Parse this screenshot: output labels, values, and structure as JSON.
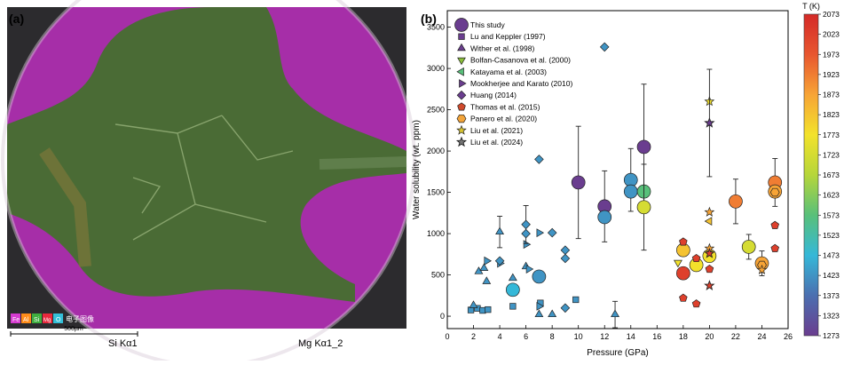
{
  "panel_a": {
    "label": "(a)",
    "legend_items": [
      "Fe",
      "Al",
      "Si",
      "Mg",
      "O"
    ],
    "legend_colors": [
      "#d63bd0",
      "#ff8c1a",
      "#3fae3f",
      "#e8283c",
      "#34c0d8"
    ],
    "legend_caption": "电子图像",
    "scale_bar_label": "500µm",
    "map_label_left": "Si Kα1",
    "map_label_right": "Mg Kα1_2"
  },
  "chart_data": {
    "type": "scatter",
    "panel_label": "(b)",
    "xlabel": "Pressure (GPa)",
    "ylabel": "Water solubility (wt. ppm)",
    "xlim": [
      0,
      26
    ],
    "ylim": [
      -150,
      3700
    ],
    "xticks": [
      0,
      2,
      4,
      6,
      8,
      10,
      12,
      14,
      16,
      18,
      20,
      22,
      24,
      26
    ],
    "yticks": [
      0,
      500,
      1000,
      1500,
      2000,
      2500,
      3000,
      3500
    ],
    "colorbar": {
      "title": "T (K)",
      "min": 1273,
      "max": 2073,
      "ticks": [
        1273,
        1323,
        1373,
        1423,
        1473,
        1523,
        1573,
        1623,
        1673,
        1723,
        1773,
        1823,
        1873,
        1923,
        1973,
        2023,
        2073
      ],
      "colors": [
        "#6a3d8f",
        "#4b6fb0",
        "#35b8d8",
        "#58c07a",
        "#b6d63a",
        "#f3e22b",
        "#f7a436",
        "#e8562f",
        "#d42a28"
      ]
    },
    "legend": [
      {
        "label": "This study",
        "marker": "circle"
      },
      {
        "label": "Lu and Keppler (1997)",
        "marker": "square"
      },
      {
        "label": "Wither et al. (1998)",
        "marker": "triangle-up"
      },
      {
        "label": "Bolfan-Casanova et al. (2000)",
        "marker": "triangle-down"
      },
      {
        "label": "Katayama et al. (2003)",
        "marker": "triangle-left"
      },
      {
        "label": "Mookherjee and Karato (2010)",
        "marker": "triangle-right"
      },
      {
        "label": "Huang (2014)",
        "marker": "diamond"
      },
      {
        "label": "Thomas et al. (2015)",
        "marker": "pentagon"
      },
      {
        "label": "Panero et al. (2020)",
        "marker": "hexagon"
      },
      {
        "label": "Liu et al. (2021)",
        "marker": "star"
      },
      {
        "label": "Liu et al. (2024)",
        "marker": "star-dark"
      }
    ],
    "series": [
      {
        "name": "This study",
        "marker": "circle",
        "points": [
          {
            "x": 5,
            "y": 320,
            "t": 1473,
            "err": 60
          },
          {
            "x": 7,
            "y": 480,
            "t": 1423
          },
          {
            "x": 10,
            "y": 1620,
            "t": 1273,
            "err": 680
          },
          {
            "x": 12,
            "y": 1330,
            "t": 1273,
            "err": 430
          },
          {
            "x": 12,
            "y": 1200,
            "t": 1423
          },
          {
            "x": 14,
            "y": 1650,
            "t": 1423,
            "err": 380
          },
          {
            "x": 14,
            "y": 1510,
            "t": 1423
          },
          {
            "x": 15,
            "y": 2050,
            "t": 1273,
            "err": 760
          },
          {
            "x": 15,
            "y": 1510,
            "t": 1573
          },
          {
            "x": 15,
            "y": 1320,
            "t": 1723,
            "err": 520
          },
          {
            "x": 18,
            "y": 800,
            "t": 1823
          },
          {
            "x": 18,
            "y": 520,
            "t": 2023
          },
          {
            "x": 19,
            "y": 620,
            "t": 1773
          },
          {
            "x": 20,
            "y": 730,
            "t": 1773
          },
          {
            "x": 22,
            "y": 1390,
            "t": 1923,
            "err": 270
          },
          {
            "x": 23,
            "y": 840,
            "t": 1723,
            "err": 150
          },
          {
            "x": 24,
            "y": 640,
            "t": 1873,
            "err": 150
          },
          {
            "x": 25,
            "y": 1620,
            "t": 1923,
            "err": 290
          },
          {
            "x": 25,
            "y": 1510,
            "t": 1873
          }
        ]
      },
      {
        "name": "Lu and Keppler (1997)",
        "marker": "square",
        "points": [
          {
            "x": 1.8,
            "y": 75,
            "t": 1423
          },
          {
            "x": 2.3,
            "y": 95,
            "t": 1423
          },
          {
            "x": 2.7,
            "y": 70,
            "t": 1423
          },
          {
            "x": 3.1,
            "y": 80,
            "t": 1423
          },
          {
            "x": 5,
            "y": 120,
            "t": 1423
          },
          {
            "x": 7.1,
            "y": 160,
            "t": 1423
          },
          {
            "x": 9.8,
            "y": 200,
            "t": 1423
          }
        ]
      },
      {
        "name": "Wither et al. (1998)",
        "marker": "triangle-up",
        "points": [
          {
            "x": 2,
            "y": 130,
            "t": 1423
          },
          {
            "x": 2.4,
            "y": 540,
            "t": 1423
          },
          {
            "x": 2.8,
            "y": 580,
            "t": 1423
          },
          {
            "x": 3,
            "y": 420,
            "t": 1423
          },
          {
            "x": 4,
            "y": 1020,
            "t": 1423,
            "err": 190
          },
          {
            "x": 5,
            "y": 460,
            "t": 1423
          },
          {
            "x": 6,
            "y": 600,
            "t": 1423
          },
          {
            "x": 7,
            "y": 20,
            "t": 1423
          },
          {
            "x": 8,
            "y": 20,
            "t": 1423
          },
          {
            "x": 12.8,
            "y": 20,
            "t": 1423,
            "err": 160
          }
        ]
      },
      {
        "name": "Bolfan-Casanova et al. (2000)",
        "marker": "triangle-down",
        "points": [
          {
            "x": 17.6,
            "y": 650,
            "t": 1773
          }
        ]
      },
      {
        "name": "Katayama et al. (2003)",
        "marker": "triangle-left",
        "points": [
          {
            "x": 20,
            "y": 1150,
            "t": 1823
          }
        ]
      },
      {
        "name": "Mookherjee and Karato (2010)",
        "marker": "triangle-right",
        "points": [
          {
            "x": 3,
            "y": 670,
            "t": 1423
          },
          {
            "x": 4,
            "y": 640,
            "t": 1423
          },
          {
            "x": 6,
            "y": 870,
            "t": 1423
          },
          {
            "x": 6.2,
            "y": 570,
            "t": 1423
          },
          {
            "x": 7,
            "y": 1010,
            "t": 1423
          },
          {
            "x": 7,
            "y": 120,
            "t": 1423
          }
        ]
      },
      {
        "name": "Huang (2014)",
        "marker": "diamond",
        "points": [
          {
            "x": 4,
            "y": 670,
            "t": 1423
          },
          {
            "x": 6,
            "y": 1110,
            "t": 1423,
            "err": 230
          },
          {
            "x": 6,
            "y": 1000,
            "t": 1423
          },
          {
            "x": 7,
            "y": 1900,
            "t": 1423
          },
          {
            "x": 8,
            "y": 1010,
            "t": 1423
          },
          {
            "x": 9,
            "y": 700,
            "t": 1423
          },
          {
            "x": 9,
            "y": 800,
            "t": 1423
          },
          {
            "x": 9,
            "y": 100,
            "t": 1423
          },
          {
            "x": 12,
            "y": 3260,
            "t": 1423
          }
        ]
      },
      {
        "name": "Thomas et al. (2015)",
        "marker": "pentagon",
        "points": [
          {
            "x": 18,
            "y": 900,
            "t": 2023
          },
          {
            "x": 18,
            "y": 220,
            "t": 2023
          },
          {
            "x": 19,
            "y": 150,
            "t": 2023
          },
          {
            "x": 19,
            "y": 700,
            "t": 2023
          },
          {
            "x": 20,
            "y": 570,
            "t": 2023
          },
          {
            "x": 25,
            "y": 1100,
            "t": 2023
          },
          {
            "x": 25,
            "y": 820,
            "t": 2023
          }
        ]
      },
      {
        "name": "Panero et al. (2020)",
        "marker": "hexagon",
        "points": [
          {
            "x": 24,
            "y": 620,
            "t": 1873
          },
          {
            "x": 25,
            "y": 1500,
            "t": 1873
          }
        ]
      },
      {
        "name": "Liu et al. (2021)",
        "marker": "star",
        "points": [
          {
            "x": 20,
            "y": 2600,
            "t": 1773
          },
          {
            "x": 20,
            "y": 1260,
            "t": 1873
          },
          {
            "x": 20,
            "y": 820,
            "t": 1873
          },
          {
            "x": 24,
            "y": 560,
            "t": 1873
          }
        ]
      },
      {
        "name": "Liu et al. (2024)",
        "marker": "star-dark",
        "points": [
          {
            "x": 20,
            "y": 2340,
            "t": 1273,
            "err": 650
          },
          {
            "x": 20,
            "y": 760,
            "t": 2023
          },
          {
            "x": 20,
            "y": 370,
            "t": 2023
          }
        ]
      }
    ]
  }
}
